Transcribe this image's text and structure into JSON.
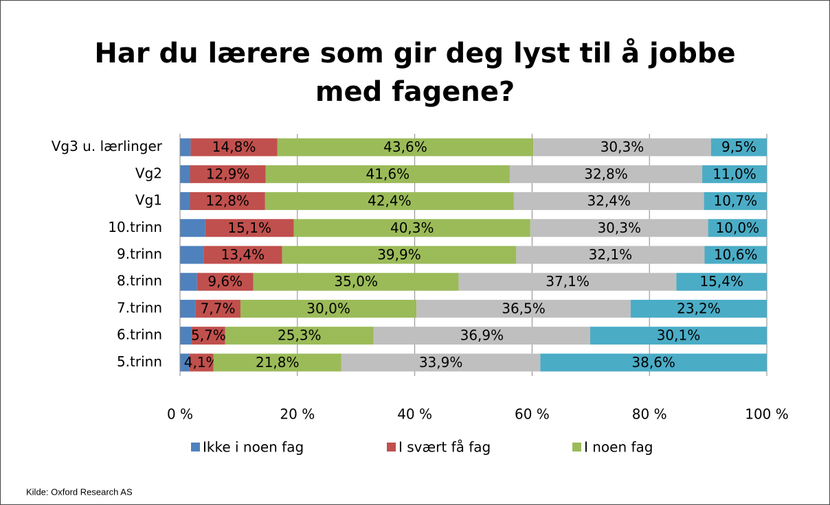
{
  "chart_data": {
    "type": "stacked-bar-horizontal",
    "title": "Har du lærere som gir deg lyst til å jobbe med fagene?",
    "source": "Kilde: Oxford Research AS",
    "categories": [
      "Vg3 u. lærlinger",
      "Vg2",
      "Vg1",
      "10.trinn",
      "9.trinn",
      "8.trinn",
      "7.trinn",
      "6.trinn",
      "5.trinn"
    ],
    "series": [
      {
        "name": "Ikke i noen fag",
        "color": "#4f81bd",
        "values": [
          1.8,
          1.7,
          1.7,
          4.3,
          4.0,
          2.9,
          2.6,
          2.0,
          1.6
        ]
      },
      {
        "name": "I svært få fag",
        "color": "#c0504d",
        "values": [
          14.8,
          12.9,
          12.8,
          15.1,
          13.4,
          9.6,
          7.7,
          5.7,
          4.1
        ],
        "value_labels": [
          "14,8%",
          "12,9%",
          "12,8%",
          "15,1%",
          "13,4%",
          "9,6%",
          "7,7%",
          "5,7%",
          "4,1%"
        ]
      },
      {
        "name": "I noen fag",
        "color": "#9bbb59",
        "values": [
          43.6,
          41.6,
          42.4,
          40.3,
          39.9,
          35.0,
          30.0,
          25.3,
          21.8
        ],
        "value_labels": [
          "43,6%",
          "41,6%",
          "42,4%",
          "40,3%",
          "39,9%",
          "35,0%",
          "30,0%",
          "25,3%",
          "21,8%"
        ]
      },
      {
        "color": "#bfbfbf",
        "values": [
          30.3,
          32.8,
          32.4,
          30.3,
          32.1,
          37.1,
          36.5,
          36.9,
          33.9
        ],
        "value_labels": [
          "30,3%",
          "32,8%",
          "32,4%",
          "30,3%",
          "32,1%",
          "37,1%",
          "36,5%",
          "36,9%",
          "33,9%"
        ]
      },
      {
        "color": "#4bacc6",
        "values": [
          9.5,
          11.0,
          10.7,
          10.0,
          10.6,
          15.4,
          23.2,
          30.1,
          38.6
        ],
        "value_labels": [
          "9,5%",
          "11,0%",
          "10,7%",
          "10,0%",
          "10,6%",
          "15,4%",
          "23,2%",
          "30,1%",
          "38,6%"
        ]
      }
    ],
    "xlim": [
      0,
      100
    ],
    "xticks": [
      {
        "value": 0,
        "label": "0 %"
      },
      {
        "value": 20,
        "label": "20 %"
      },
      {
        "value": 40,
        "label": "40 %"
      },
      {
        "value": 60,
        "label": "60 %"
      },
      {
        "value": 80,
        "label": "80 %"
      },
      {
        "value": 100,
        "label": "100 %"
      }
    ],
    "grid": true,
    "legend": "bottom"
  }
}
